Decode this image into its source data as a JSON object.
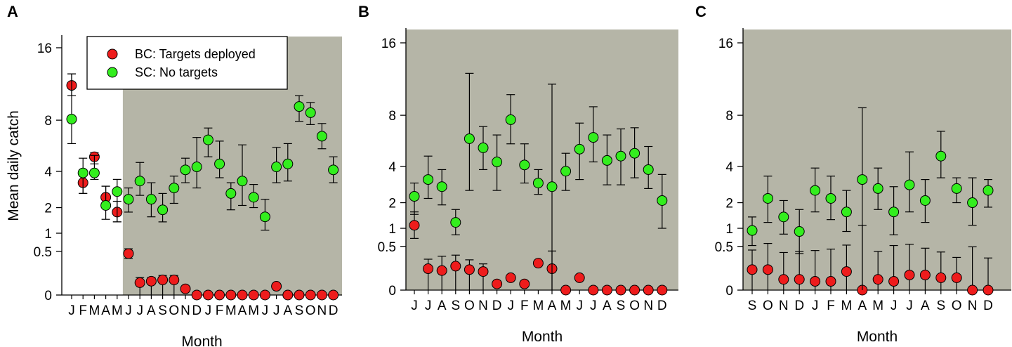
{
  "chart_data": [
    {
      "type": "scatter",
      "panel": "A",
      "ylabel": "Mean daily catch",
      "xlabel": "Month",
      "y_scale": "sqrt",
      "y_ticks": [
        0,
        0.5,
        1,
        2,
        4,
        8,
        16
      ],
      "categories": [
        "J",
        "F",
        "M",
        "A",
        "M",
        "J",
        "J",
        "A",
        "S",
        "O",
        "N",
        "D",
        "J",
        "F",
        "M",
        "A",
        "M",
        "J",
        "J",
        "A",
        "S",
        "O",
        "N",
        "D"
      ],
      "shaded_from_index": 5,
      "legend": {
        "position": "top-left",
        "entries": [
          "BC: Targets deployed",
          "SC: No targets"
        ]
      },
      "series": [
        {
          "name": "BC: Targets deployed",
          "color": "#ee1c1c",
          "values": [
            11.5,
            3.3,
            5.0,
            2.5,
            1.8,
            0.45,
            0.04,
            0.05,
            0.06,
            0.06,
            0.01,
            0.0,
            0.0,
            0.0,
            0.0,
            0.0,
            0.0,
            0.0,
            0.02,
            0.0,
            0.0,
            0.0,
            0.0,
            0.0
          ],
          "err_low": [
            10.4,
            2.7,
            4.5,
            2.0,
            1.4,
            0.35,
            0.0,
            0.0,
            0.0,
            0.0,
            0.0,
            0.0,
            0.0,
            0.0,
            0.0,
            0.0,
            0.0,
            0.0,
            0.0,
            0.0,
            0.0,
            0.0,
            0.0,
            0.0
          ],
          "err_high": [
            12.8,
            4.1,
            5.3,
            3.1,
            2.3,
            0.56,
            0.08,
            0.08,
            0.1,
            0.1,
            0.0,
            0.0,
            0.0,
            0.0,
            0.0,
            0.0,
            0.0,
            0.0,
            0.0,
            0.0,
            0.0,
            0.0,
            0.0,
            0.0
          ]
        },
        {
          "name": "SC: No targets",
          "color": "#33ee1e",
          "values": [
            8.1,
            3.9,
            3.9,
            2.1,
            2.8,
            2.4,
            3.4,
            2.4,
            1.9,
            3.0,
            4.1,
            4.3,
            6.3,
            4.5,
            2.7,
            3.4,
            2.5,
            1.6,
            4.3,
            4.5,
            9.3,
            8.7,
            6.6,
            4.1
          ],
          "err_low": [
            6.0,
            2.7,
            3.5,
            1.5,
            1.4,
            1.8,
            2.6,
            1.6,
            1.4,
            2.2,
            3.3,
            3.0,
            5.0,
            3.6,
            1.9,
            2.1,
            2.0,
            1.1,
            3.3,
            3.4,
            7.9,
            7.6,
            5.6,
            3.3
          ],
          "err_high": [
            12.8,
            4.9,
            5.1,
            3.1,
            3.5,
            3.0,
            4.6,
            3.3,
            2.7,
            3.7,
            4.9,
            6.5,
            7.3,
            6.2,
            3.3,
            5.9,
            3.2,
            2.4,
            5.7,
            6.0,
            10.4,
            9.7,
            7.7,
            5.0
          ]
        }
      ]
    },
    {
      "type": "scatter",
      "panel": "B",
      "xlabel": "Month",
      "y_scale": "sqrt",
      "y_ticks": [
        0,
        0.5,
        1,
        2,
        4,
        8,
        16
      ],
      "categories": [
        "J",
        "J",
        "A",
        "S",
        "O",
        "N",
        "D",
        "J",
        "F",
        "M",
        "A",
        "M",
        "J",
        "J",
        "A",
        "S",
        "O",
        "N",
        "D"
      ],
      "shaded_from_index": 0,
      "series": [
        {
          "name": "BC: Targets deployed",
          "color": "#ee1c1c",
          "values": [
            1.1,
            0.12,
            0.1,
            0.15,
            0.11,
            0.09,
            0.01,
            0.04,
            0.01,
            0.19,
            0.12,
            0.0,
            0.04,
            0.0,
            0.0,
            0.0,
            0.0,
            0.0,
            0.0
          ],
          "err_low": [
            0.7,
            0.0,
            0.0,
            0.0,
            0.0,
            0.0,
            0.0,
            0.0,
            0.0,
            0.0,
            0.0,
            0.0,
            0.0,
            0.0,
            0.0,
            0.0,
            0.0,
            0.0,
            0.0
          ],
          "err_high": [
            1.6,
            0.25,
            0.3,
            0.32,
            0.24,
            0.18,
            0.0,
            0.0,
            0.0,
            0.0,
            0.4,
            0.0,
            0.0,
            0.0,
            0.0,
            0.0,
            0.0,
            0.0,
            0.0
          ]
        },
        {
          "name": "SC: No targets",
          "color": "#33ee1e",
          "values": [
            2.3,
            3.2,
            2.8,
            1.2,
            6.0,
            5.3,
            4.3,
            7.6,
            4.1,
            3.0,
            2.8,
            3.7,
            5.2,
            6.1,
            4.4,
            4.7,
            4.9,
            3.8,
            2.1
          ],
          "err_low": [
            1.5,
            2.2,
            1.9,
            0.8,
            2.6,
            3.8,
            2.6,
            5.6,
            3.0,
            2.4,
            0.0,
            2.6,
            3.2,
            4.3,
            2.9,
            2.9,
            3.3,
            2.7,
            1.0
          ],
          "err_high": [
            3.0,
            4.7,
            3.8,
            1.7,
            12.3,
            7.0,
            6.3,
            10.0,
            5.6,
            3.8,
            11.1,
            4.9,
            7.3,
            8.8,
            6.3,
            6.8,
            6.9,
            5.4,
            3.5
          ]
        }
      ]
    },
    {
      "type": "scatter",
      "panel": "C",
      "xlabel": "Month",
      "y_scale": "sqrt",
      "y_ticks": [
        0,
        0.5,
        1,
        2,
        4,
        8,
        16
      ],
      "categories": [
        "S",
        "O",
        "N",
        "D",
        "J",
        "F",
        "M",
        "A",
        "M",
        "J",
        "J",
        "A",
        "S",
        "O",
        "N",
        "D"
      ],
      "shaded_from_index": 0,
      "series": [
        {
          "name": "BC: Targets deployed",
          "color": "#ee1c1c",
          "values": [
            0.11,
            0.11,
            0.03,
            0.03,
            0.02,
            0.02,
            0.09,
            0.0,
            0.03,
            0.02,
            0.06,
            0.06,
            0.04,
            0.04,
            0.0,
            0.0
          ],
          "err_low": [
            0.0,
            0.0,
            0.0,
            0.0,
            0.0,
            0.0,
            0.0,
            0.0,
            0.0,
            0.0,
            0.0,
            0.0,
            0.0,
            0.0,
            0.0,
            0.0
          ],
          "err_high": [
            0.42,
            0.57,
            0.37,
            0.39,
            0.41,
            0.44,
            0.53,
            1.1,
            0.39,
            0.52,
            0.55,
            0.46,
            0.38,
            0.28,
            0.49,
            0.27
          ]
        },
        {
          "name": "SC: No targets",
          "color": "#33ee1e",
          "values": [
            0.93,
            2.2,
            1.4,
            0.9,
            2.6,
            2.2,
            1.6,
            3.2,
            2.7,
            1.6,
            2.9,
            2.1,
            4.7,
            2.7,
            2.0,
            2.6
          ],
          "err_low": [
            0.52,
            1.2,
            0.82,
            0.35,
            1.6,
            1.3,
            0.9,
            0.0,
            1.7,
            0.8,
            1.6,
            1.2,
            3.3,
            2.0,
            1.1,
            1.8
          ],
          "err_high": [
            1.4,
            3.4,
            2.1,
            1.7,
            3.9,
            3.4,
            2.6,
            8.7,
            3.9,
            2.8,
            5.0,
            3.2,
            6.6,
            3.3,
            3.3,
            3.2
          ]
        }
      ]
    }
  ]
}
